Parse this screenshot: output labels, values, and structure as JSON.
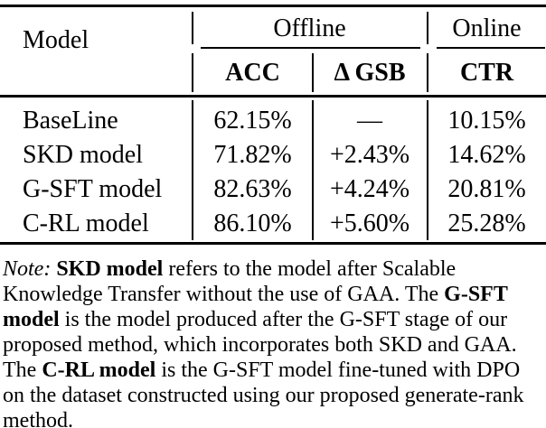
{
  "colors": {
    "text": "#000000",
    "background": "#ffffff",
    "rule": "#000000"
  },
  "table": {
    "model_header": "Model",
    "groups": [
      {
        "label": "Offline"
      },
      {
        "label": "Online"
      }
    ],
    "subheaders": [
      {
        "label": "ACC"
      },
      {
        "label": "Δ GSB"
      },
      {
        "label": "CTR"
      }
    ],
    "rows": [
      {
        "model": "BaseLine",
        "acc": "62.15%",
        "gsb": "—",
        "ctr": "10.15%"
      },
      {
        "model": "SKD model",
        "acc": "71.82%",
        "gsb": "+2.43%",
        "ctr": "14.62%"
      },
      {
        "model": "G-SFT model",
        "acc": "82.63%",
        "gsb": "+4.24%",
        "ctr": "20.81%"
      },
      {
        "model": "C-RL model",
        "acc": "86.10%",
        "gsb": "+5.60%",
        "ctr": "25.28%"
      }
    ]
  },
  "note": {
    "lines": [
      {
        "segments": [
          {
            "text": "Note: ",
            "style": "italic"
          },
          {
            "text": "SKD model",
            "style": "bold"
          },
          {
            "text": " refers to the model after Scalable",
            "style": ""
          }
        ]
      },
      {
        "segments": [
          {
            "text": "Knowledge Transfer without the use of GAA. The ",
            "style": ""
          },
          {
            "text": "G-SFT",
            "style": "bold"
          }
        ]
      },
      {
        "segments": [
          {
            "text": "model",
            "style": "bold"
          },
          {
            "text": " is the model produced after the G-SFT stage of our",
            "style": ""
          }
        ]
      },
      {
        "segments": [
          {
            "text": "proposed method, which incorporates both SKD and GAA.",
            "style": ""
          }
        ]
      },
      {
        "segments": [
          {
            "text": "The ",
            "style": ""
          },
          {
            "text": "C-RL model",
            "style": "bold"
          },
          {
            "text": " is the G-SFT model fine-tuned with DPO",
            "style": ""
          }
        ]
      },
      {
        "segments": [
          {
            "text": "on the dataset constructed using our proposed generate-rank",
            "style": ""
          }
        ]
      },
      {
        "segments": [
          {
            "text": "method.",
            "style": ""
          }
        ]
      }
    ]
  }
}
